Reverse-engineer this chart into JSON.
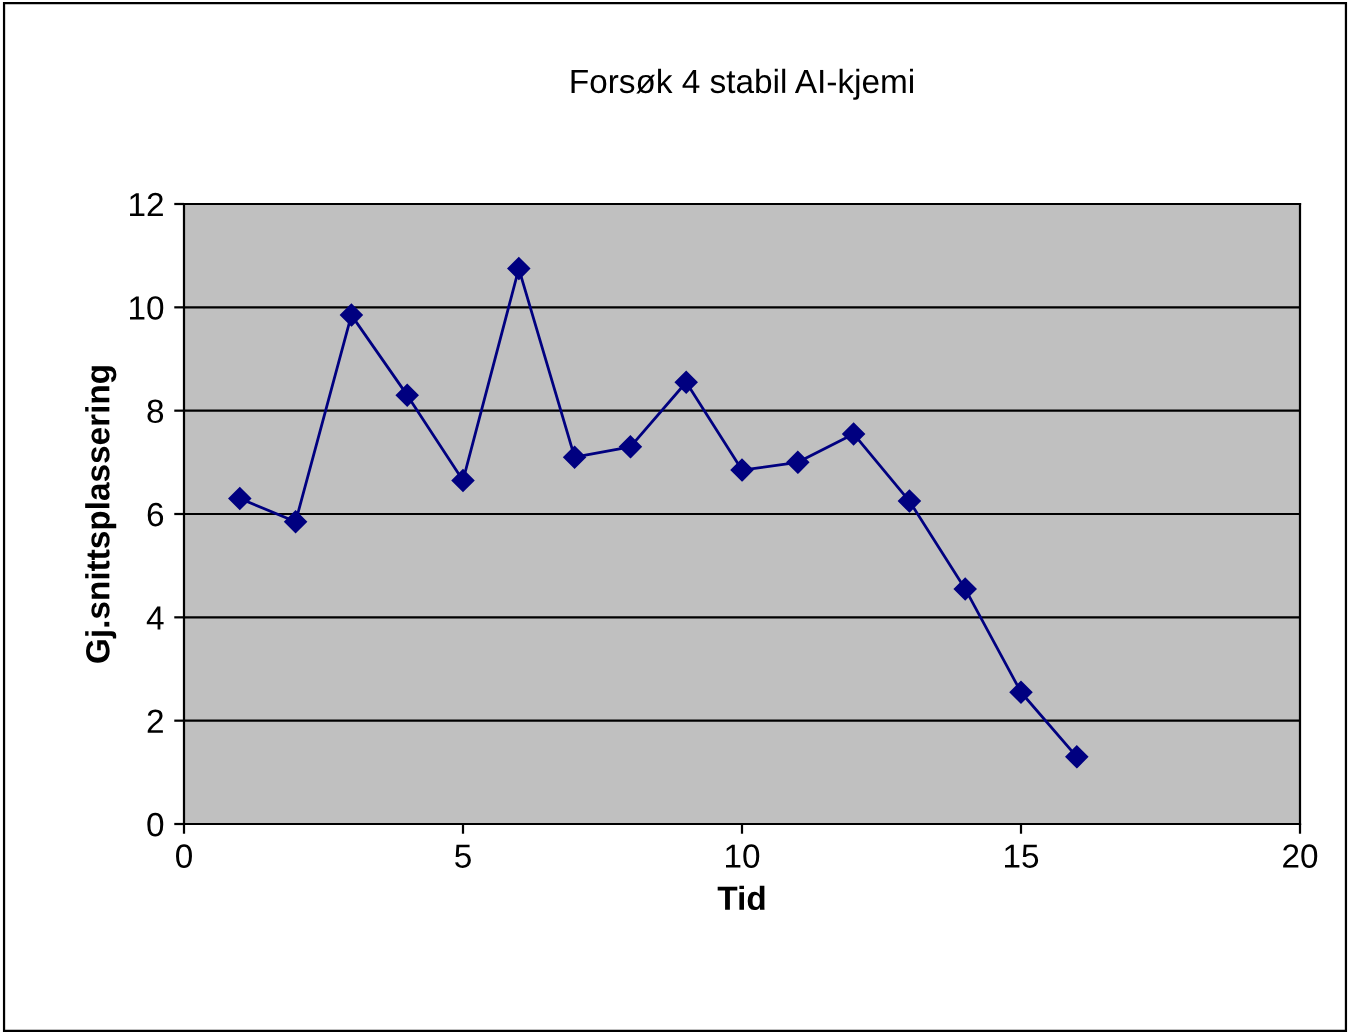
{
  "chart_data": {
    "type": "line",
    "title": "Forsøk 4 stabil AI-kjemi",
    "xlabel": "Tid",
    "ylabel": "Gj.snittsplassering",
    "x": [
      1,
      2,
      3,
      4,
      5,
      6,
      7,
      8,
      9,
      10,
      11,
      12,
      13,
      14,
      15,
      16
    ],
    "series": [
      {
        "color": "#000080",
        "values": [
          6.3,
          5.85,
          9.85,
          8.3,
          6.65,
          10.75,
          7.1,
          7.3,
          8.55,
          6.85,
          7.0,
          7.55,
          6.25,
          4.55,
          2.55,
          1.3
        ]
      }
    ],
    "xlim": [
      0,
      20
    ],
    "xticks": [
      0,
      5,
      10,
      15,
      20
    ],
    "ylim": [
      0,
      12
    ],
    "yticks": [
      0,
      2,
      4,
      6,
      8,
      10,
      12
    ],
    "grid": "y",
    "marker": "diamond",
    "line_style": "solid",
    "legend": false
  }
}
